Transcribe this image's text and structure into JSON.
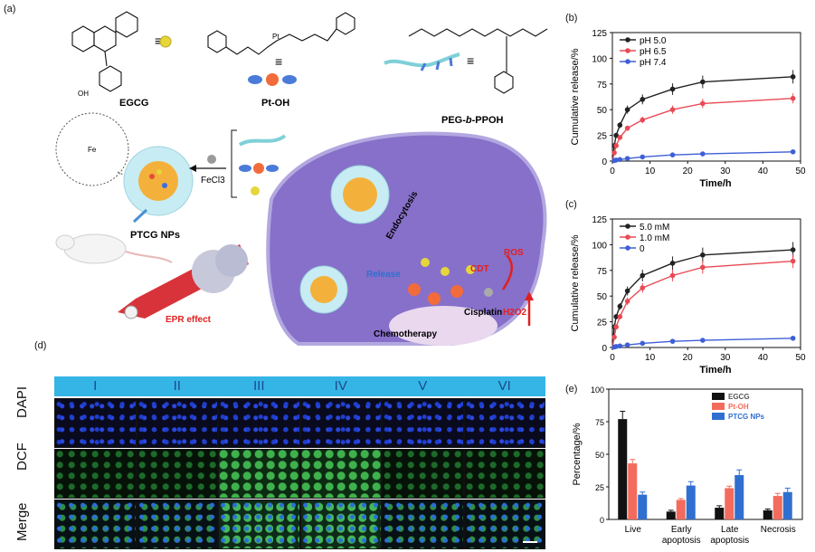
{
  "panels": {
    "a": "(a)",
    "b": "(b)",
    "c": "(c)",
    "d": "(d)",
    "e": "(e)"
  },
  "scheme": {
    "egcg": "EGCG",
    "ptoh": "Pt-OH",
    "peg_pre": "PEG-",
    "peg_b": "b",
    "peg_post": "-PPOH",
    "equiv": "≡",
    "ptcg": "PTCG NPs",
    "fecl3": "FeCl3",
    "endocytosis": "Endocytosis",
    "release": "Release",
    "cdt": "CDT",
    "ros": "ROS",
    "h2o2": "H2O2",
    "cisplatin": "Cisplatin",
    "chemotherapy": "Chemotherapy",
    "epr": "EPR effect"
  },
  "micro": {
    "columns": [
      "I",
      "II",
      "III",
      "IV",
      "V",
      "VI"
    ],
    "rows": [
      "DAPI",
      "DCF",
      "Merge"
    ]
  },
  "chart_data": [
    {
      "type": "line",
      "panel": "b",
      "xlabel": "Time/h",
      "ylabel": "Cumulative release/%",
      "xlim": [
        0,
        50
      ],
      "ylim": [
        0,
        125
      ],
      "xticks": [
        0,
        10,
        20,
        30,
        40,
        50
      ],
      "yticks": [
        0,
        25,
        50,
        75,
        100,
        125
      ],
      "x": [
        0,
        0.5,
        1,
        2,
        4,
        8,
        16,
        24,
        48
      ],
      "series": [
        {
          "name": "pH 5.0",
          "color": "#222222",
          "values": [
            0,
            15,
            25,
            35,
            50,
            60,
            70,
            77,
            82
          ]
        },
        {
          "name": "pH 6.5",
          "color": "#e84a55",
          "values": [
            0,
            8,
            15,
            23,
            32,
            40,
            50,
            56,
            61
          ]
        },
        {
          "name": "pH 7.4",
          "color": "#3f5fd6",
          "values": [
            0,
            0.5,
            1,
            1.5,
            2.5,
            4,
            6,
            7,
            9
          ]
        }
      ]
    },
    {
      "type": "line",
      "panel": "c",
      "xlabel": "Time/h",
      "ylabel": "Cumulative release/%",
      "xlim": [
        0,
        50
      ],
      "ylim": [
        0,
        125
      ],
      "xticks": [
        0,
        10,
        20,
        30,
        40,
        50
      ],
      "yticks": [
        0,
        25,
        50,
        75,
        100,
        125
      ],
      "x": [
        0,
        0.5,
        1,
        2,
        4,
        8,
        16,
        24,
        48
      ],
      "series": [
        {
          "name": "5.0 mM",
          "color": "#222222",
          "values": [
            0,
            20,
            30,
            40,
            55,
            70,
            82,
            90,
            95
          ]
        },
        {
          "name": "1.0 mM",
          "color": "#e84a55",
          "values": [
            0,
            10,
            20,
            30,
            45,
            58,
            70,
            78,
            84
          ]
        },
        {
          "name": "0",
          "color": "#3f5fd6",
          "values": [
            0,
            0.5,
            1,
            1.5,
            2.5,
            4,
            6,
            7,
            9
          ]
        }
      ]
    },
    {
      "type": "bar",
      "panel": "e",
      "ylabel": "Percentage/%",
      "ylim": [
        0,
        100
      ],
      "yticks": [
        0,
        25,
        50,
        75,
        100
      ],
      "categories": [
        "Live",
        "Early apoptosis",
        "Late apoptosis",
        "Necrosis"
      ],
      "category_lines": [
        [
          "Live"
        ],
        [
          "Early",
          "apoptosis"
        ],
        [
          "Late",
          "apoptosis"
        ],
        [
          "Necrosis"
        ]
      ],
      "series": [
        {
          "name": "EGCG",
          "color": "#111111",
          "values": [
            77,
            6,
            9,
            7
          ],
          "errors": [
            6,
            1,
            1.5,
            1
          ]
        },
        {
          "name": "Pt-OH",
          "color": "#f36b5c",
          "values": [
            43,
            15,
            24,
            18
          ],
          "errors": [
            3,
            1,
            1.5,
            2
          ]
        },
        {
          "name": "PTCG NPs",
          "color": "#2f6fd0",
          "values": [
            19,
            26,
            34,
            21
          ],
          "errors": [
            2,
            3,
            4,
            3
          ]
        }
      ]
    }
  ]
}
